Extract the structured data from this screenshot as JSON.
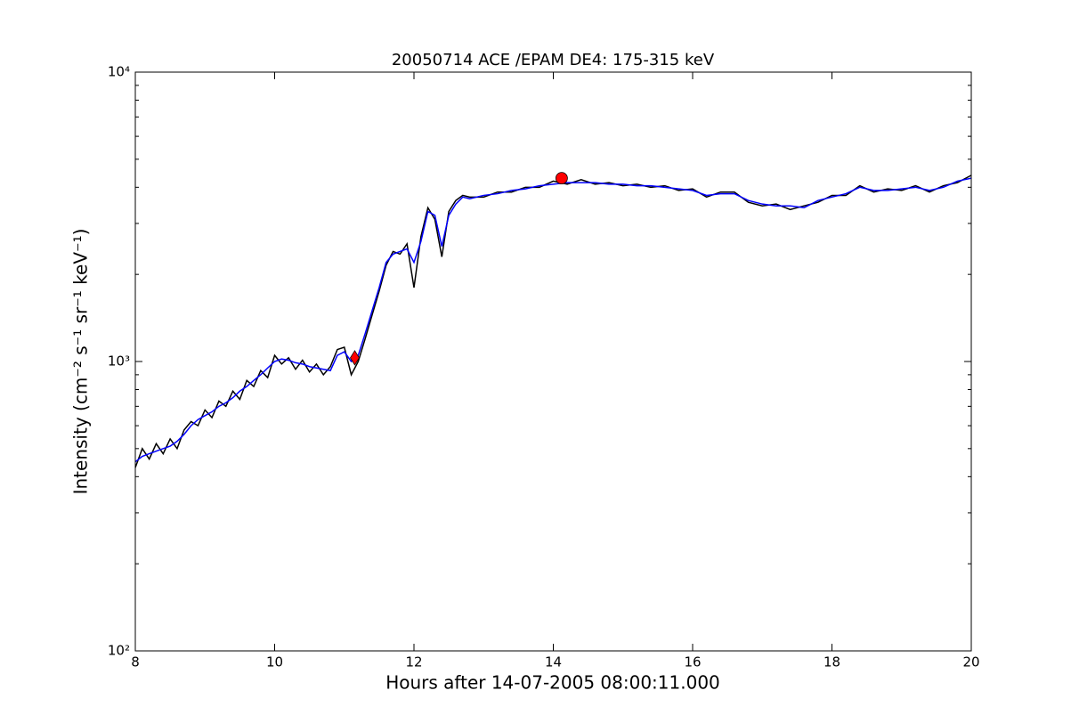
{
  "chart_data": {
    "type": "line",
    "title": "20050714 ACE /EPAM DE4: 175-315 keV",
    "xlabel": "Hours after 14-07-2005 08:00:11.000",
    "ylabel": "Intensity (cm⁻² s⁻¹ sr⁻¹ keV⁻¹)",
    "x": [
      8.0,
      8.1,
      8.2,
      8.3,
      8.4,
      8.5,
      8.6,
      8.7,
      8.8,
      8.9,
      9.0,
      9.1,
      9.2,
      9.3,
      9.4,
      9.5,
      9.6,
      9.7,
      9.8,
      9.9,
      10.0,
      10.1,
      10.2,
      10.3,
      10.4,
      10.5,
      10.6,
      10.7,
      10.8,
      10.9,
      11.0,
      11.1,
      11.2,
      11.3,
      11.4,
      11.5,
      11.6,
      11.7,
      11.8,
      11.9,
      12.0,
      12.1,
      12.2,
      12.3,
      12.4,
      12.5,
      12.6,
      12.7,
      12.8,
      13.0,
      13.2,
      13.4,
      13.6,
      13.8,
      14.0,
      14.2,
      14.4,
      14.6,
      14.8,
      15.0,
      15.2,
      15.4,
      15.6,
      15.8,
      16.0,
      16.2,
      16.4,
      16.6,
      16.8,
      17.0,
      17.2,
      17.4,
      17.6,
      17.8,
      18.0,
      18.2,
      18.4,
      18.6,
      18.8,
      19.0,
      19.2,
      19.4,
      19.6,
      19.8,
      20.0
    ],
    "series": [
      {
        "color": "#000000",
        "values": [
          430,
          500,
          460,
          520,
          480,
          540,
          500,
          580,
          620,
          600,
          680,
          640,
          730,
          700,
          790,
          740,
          860,
          820,
          930,
          880,
          1050,
          980,
          1030,
          940,
          1010,
          920,
          980,
          900,
          960,
          1100,
          1120,
          900,
          1000,
          1200,
          1450,
          1750,
          2150,
          2400,
          2350,
          2550,
          1800,
          2700,
          3400,
          3100,
          2300,
          3300,
          3600,
          3750,
          3700,
          3700,
          3850,
          3850,
          4000,
          4000,
          4200,
          4100,
          4250,
          4100,
          4150,
          4050,
          4100,
          4000,
          4050,
          3900,
          3950,
          3700,
          3850,
          3850,
          3550,
          3450,
          3500,
          3350,
          3450,
          3550,
          3750,
          3750,
          4050,
          3850,
          3950,
          3900,
          4050,
          3850,
          4050,
          4150,
          4400
        ]
      },
      {
        "color": "#0000ff",
        "values": [
          450,
          470,
          480,
          490,
          500,
          510,
          530,
          560,
          600,
          630,
          650,
          670,
          700,
          720,
          750,
          790,
          820,
          860,
          900,
          950,
          1000,
          1020,
          1010,
          990,
          980,
          960,
          950,
          940,
          930,
          1050,
          1080,
          1000,
          1050,
          1250,
          1500,
          1800,
          2200,
          2350,
          2400,
          2450,
          2200,
          2600,
          3300,
          3200,
          2500,
          3200,
          3500,
          3700,
          3650,
          3750,
          3800,
          3900,
          3950,
          4050,
          4100,
          4150,
          4150,
          4150,
          4100,
          4100,
          4050,
          4050,
          4000,
          3950,
          3900,
          3750,
          3800,
          3800,
          3600,
          3500,
          3450,
          3450,
          3400,
          3600,
          3700,
          3800,
          4000,
          3900,
          3900,
          3950,
          4000,
          3900,
          4000,
          4200,
          4300
        ]
      }
    ],
    "points": [
      {
        "x": 11.15,
        "y": 1030,
        "marker": "diamond",
        "color": "#ff0000"
      },
      {
        "x": 14.12,
        "y": 4300,
        "marker": "circle",
        "color": "#ff0000"
      }
    ],
    "xlim": [
      8,
      20
    ],
    "xticks": [
      8,
      10,
      12,
      14,
      16,
      18,
      20
    ],
    "ylim": [
      100,
      10000
    ],
    "log_y": true,
    "yticks": [
      {
        "value": 100,
        "label": "10²"
      },
      {
        "value": 1000,
        "label": "10³"
      },
      {
        "value": 10000,
        "label": "10⁴"
      }
    ],
    "yminorticks": [
      200,
      300,
      400,
      500,
      600,
      700,
      800,
      900,
      2000,
      3000,
      4000,
      5000,
      6000,
      7000,
      8000,
      9000
    ]
  }
}
